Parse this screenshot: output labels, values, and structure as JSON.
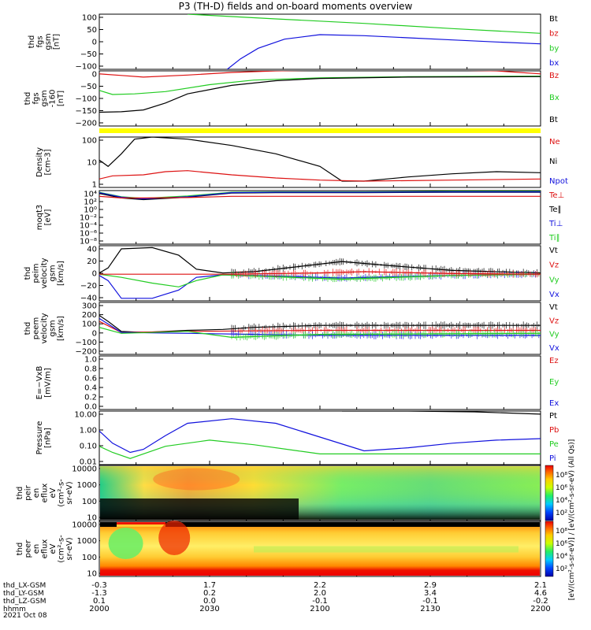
{
  "title": "P3 (TH-D) fields and on-board moments overview",
  "colors": {
    "black": "#000000",
    "red": "#dd1111",
    "green": "#22cc22",
    "blue": "#1111dd",
    "yellow": "#ffff00"
  },
  "chart_data": [
    {
      "type": "line",
      "id": "p1",
      "ylabel": [
        "thd",
        "fgs",
        "gsm",
        "[nT]"
      ],
      "yticks": [
        "100",
        "50",
        "0",
        "−50",
        "−100"
      ],
      "ylim": [
        -100,
        110
      ],
      "legend": [
        {
          "label": "Bt",
          "color": "black"
        },
        {
          "label": "bz",
          "color": "red"
        },
        {
          "label": "by",
          "color": "green"
        },
        {
          "label": "bx",
          "color": "blue"
        }
      ],
      "series": [
        {
          "color": "green",
          "x": [
            0.2,
            0.4,
            0.6,
            0.8,
            1.0
          ],
          "y": [
            110,
            92,
            75,
            55,
            37
          ]
        },
        {
          "color": "blue",
          "x": [
            0.29,
            0.32,
            0.36,
            0.42,
            0.5,
            0.6,
            0.7,
            0.8,
            0.9,
            1.0
          ],
          "y": [
            -100,
            -60,
            -20,
            15,
            32,
            28,
            20,
            12,
            4,
            -3
          ]
        }
      ]
    },
    {
      "type": "line",
      "id": "p2",
      "ylabel": [
        "thd",
        "fgs",
        "gsm",
        "-160",
        "[nT]"
      ],
      "yticks": [
        "0",
        "−50",
        "−100",
        "−150",
        "−200"
      ],
      "ylim": [
        -225,
        15
      ],
      "legend": [
        {
          "label": "Bz",
          "color": "red"
        },
        {
          "label": "Bx",
          "color": "green"
        },
        {
          "label": "Bt",
          "color": "black"
        }
      ],
      "series": [
        {
          "color": "red",
          "x": [
            0.0,
            0.05,
            0.1,
            0.2,
            0.3,
            0.4,
            0.6,
            0.8,
            0.9,
            1.0
          ],
          "y": [
            2,
            -5,
            -12,
            -3,
            8,
            15,
            20,
            18,
            15,
            2
          ]
        },
        {
          "color": "green",
          "x": [
            0.0,
            0.03,
            0.08,
            0.15,
            0.25,
            0.35,
            0.5,
            0.7,
            1.0
          ],
          "y": [
            -70,
            -88,
            -85,
            -75,
            -45,
            -25,
            -15,
            -10,
            -8
          ]
        },
        {
          "color": "black",
          "x": [
            0.0,
            0.05,
            0.1,
            0.15,
            0.2,
            0.3,
            0.4,
            0.5,
            0.7,
            1.0
          ],
          "y": [
            -165,
            -163,
            -155,
            -125,
            -85,
            -48,
            -28,
            -18,
            -12,
            -10
          ]
        }
      ]
    },
    {
      "type": "line",
      "id": "p3",
      "ylabel": [
        "Density",
        "[cm-3]"
      ],
      "yticks": [
        "100",
        "10",
        "1"
      ],
      "ylim": [
        -0.1,
        2.3
      ],
      "log": true,
      "legend": [
        {
          "label": "Ne",
          "color": "red"
        },
        {
          "label": "Ni",
          "color": "black"
        },
        {
          "label": "Npot",
          "color": "blue"
        }
      ],
      "series": [
        {
          "color": "black",
          "x": [
            0.0,
            0.02,
            0.05,
            0.08,
            0.12,
            0.2,
            0.3,
            0.4,
            0.5,
            0.55,
            0.6,
            0.7,
            0.8,
            0.9,
            1.0
          ],
          "y": [
            1.2,
            0.9,
            1.5,
            2.2,
            2.3,
            2.2,
            1.9,
            1.5,
            0.9,
            0.2,
            0.2,
            0.4,
            0.55,
            0.65,
            0.6
          ]
        },
        {
          "color": "red",
          "x": [
            0.0,
            0.03,
            0.1,
            0.15,
            0.2,
            0.3,
            0.4,
            0.5,
            0.6,
            0.8,
            1.0
          ],
          "y": [
            0.3,
            0.45,
            0.5,
            0.65,
            0.7,
            0.5,
            0.35,
            0.25,
            0.2,
            0.25,
            0.3
          ]
        }
      ]
    },
    {
      "type": "line",
      "id": "p4",
      "ylabel": [
        "moqt3",
        "[eV]"
      ],
      "yticks": [
        "10⁴",
        "10²",
        "10⁰",
        "10⁻²",
        "10⁻⁴",
        "10⁻⁶",
        "10⁻⁸"
      ],
      "ylim": [
        -9,
        4
      ],
      "legend": [
        {
          "label": "Te⊥",
          "color": "red"
        },
        {
          "label": "Te∥",
          "color": "black"
        },
        {
          "label": "Ti⊥",
          "color": "blue"
        },
        {
          "label": "Ti∥",
          "color": "green"
        }
      ],
      "series": [
        {
          "color": "black",
          "x": [
            0.0,
            0.05,
            0.1,
            0.2,
            0.3,
            0.4,
            0.6,
            0.8,
            1.0
          ],
          "y": [
            3.3,
            2.2,
            1.8,
            2.4,
            3.4,
            3.5,
            3.5,
            3.6,
            3.6
          ]
        },
        {
          "color": "green",
          "x": [
            0.0,
            0.05,
            0.1,
            0.2,
            0.3,
            0.4,
            0.6,
            0.8,
            1.0
          ],
          "y": [
            3.6,
            2.5,
            2.1,
            2.7,
            3.6,
            3.7,
            3.7,
            3.8,
            3.8
          ]
        },
        {
          "color": "blue",
          "x": [
            0.0,
            0.05,
            0.1,
            0.2,
            0.3,
            0.4,
            0.6,
            0.8,
            1.0
          ],
          "y": [
            3.5,
            2.4,
            2.0,
            2.5,
            3.5,
            3.6,
            3.6,
            3.7,
            3.7
          ]
        },
        {
          "color": "red",
          "x": [
            0.0,
            0.05,
            0.1,
            0.2,
            0.3,
            1.0
          ],
          "y": [
            2.6,
            2.2,
            2.2,
            2.3,
            2.6,
            2.6
          ]
        }
      ]
    },
    {
      "type": "line",
      "id": "p5",
      "ylabel": [
        "thd",
        "peim",
        "velocity",
        "gsm",
        "[km/s]"
      ],
      "yticks": [
        "40",
        "20",
        "0",
        "−20",
        "−40"
      ],
      "ylim": [
        -42,
        45
      ],
      "legend": [
        {
          "label": "Vt",
          "color": "black"
        },
        {
          "label": "Vz",
          "color": "red"
        },
        {
          "label": "Vy",
          "color": "green"
        },
        {
          "label": "Vx",
          "color": "blue"
        }
      ],
      "series": [
        {
          "color": "black",
          "x": [
            0.0,
            0.02,
            0.05,
            0.12,
            0.18,
            0.22,
            0.28,
            0.35,
            0.45,
            0.55,
            0.65,
            0.8,
            1.0
          ],
          "y": [
            2,
            10,
            40,
            42,
            30,
            8,
            2,
            4,
            12,
            20,
            14,
            6,
            2
          ]
        },
        {
          "color": "blue",
          "x": [
            0.0,
            0.02,
            0.05,
            0.12,
            0.18,
            0.22,
            0.28,
            0.4,
            0.55,
            0.8,
            1.0
          ],
          "y": [
            -2,
            -10,
            -38,
            -38,
            -25,
            -5,
            -1,
            -3,
            -6,
            -2,
            0
          ]
        },
        {
          "color": "green",
          "x": [
            0.0,
            0.05,
            0.12,
            0.18,
            0.22,
            0.28,
            0.4,
            0.55,
            0.8,
            1.0
          ],
          "y": [
            0,
            -5,
            -14,
            -20,
            -10,
            -1,
            -4,
            -8,
            -2,
            0
          ]
        },
        {
          "color": "red",
          "x": [
            0.0,
            0.3,
            0.5,
            0.6,
            0.8,
            1.0
          ],
          "y": [
            0,
            0,
            2,
            4,
            1,
            0
          ]
        }
      ]
    },
    {
      "type": "line",
      "id": "p6",
      "ylabel": [
        "thd",
        "peem",
        "velocity",
        "gsm",
        "[km/s]"
      ],
      "yticks": [
        "300",
        "200",
        "100",
        "0",
        "−100",
        "−200"
      ],
      "ylim": [
        -210,
        310
      ],
      "legend": [
        {
          "label": "Vt",
          "color": "black"
        },
        {
          "label": "Vz",
          "color": "red"
        },
        {
          "label": "Vy",
          "color": "green"
        },
        {
          "label": "Vx",
          "color": "blue"
        }
      ],
      "series": [
        {
          "color": "black",
          "x": [
            0.0,
            0.02,
            0.05,
            0.1,
            0.2,
            0.28,
            0.35,
            0.5,
            0.7,
            1.0
          ],
          "y": [
            180,
            120,
            20,
            10,
            30,
            40,
            60,
            80,
            80,
            80
          ]
        },
        {
          "color": "red",
          "x": [
            0.0,
            0.05,
            0.2,
            0.5,
            1.0
          ],
          "y": [
            120,
            10,
            20,
            30,
            30
          ]
        },
        {
          "color": "blue",
          "x": [
            0.0,
            0.05,
            0.2,
            0.5,
            1.0
          ],
          "y": [
            150,
            10,
            0,
            -20,
            -20
          ]
        },
        {
          "color": "green",
          "x": [
            0.0,
            0.05,
            0.2,
            0.3,
            0.5,
            1.0
          ],
          "y": [
            60,
            0,
            20,
            -40,
            -10,
            0
          ]
        }
      ]
    },
    {
      "type": "line",
      "id": "p7",
      "ylabel": [
        "E=−VxB",
        "[mV/m]"
      ],
      "yticks": [
        "1.0",
        "0.8",
        "0.6",
        "0.4",
        "0.2",
        "0.0"
      ],
      "ylim": [
        0,
        1
      ],
      "legend": [
        {
          "label": "Ez",
          "color": "red"
        },
        {
          "label": "Ey",
          "color": "green"
        },
        {
          "label": "Ex",
          "color": "blue"
        }
      ],
      "series": []
    },
    {
      "type": "line",
      "id": "p8",
      "ylabel": [
        "Pressure",
        "[nPa]"
      ],
      "yticks": [
        "10.00",
        "1.00",
        "0.10",
        "0.01"
      ],
      "ylim": [
        -2.2,
        1.3
      ],
      "log": true,
      "legend": [
        {
          "label": "Pt",
          "color": "black"
        },
        {
          "label": "Pb",
          "color": "red"
        },
        {
          "label": "Pe",
          "color": "green"
        },
        {
          "label": "Pi",
          "color": "blue"
        }
      ],
      "series": [
        {
          "color": "blue",
          "x": [
            0.0,
            0.03,
            0.07,
            0.1,
            0.15,
            0.2,
            0.3,
            0.4,
            0.5,
            0.6,
            0.7,
            0.8,
            0.9,
            1.0
          ],
          "y": [
            0.0,
            -0.8,
            -1.4,
            -1.2,
            -0.3,
            0.5,
            0.8,
            0.5,
            -0.4,
            -1.3,
            -1.1,
            -0.8,
            -0.6,
            -0.5
          ]
        },
        {
          "color": "green",
          "x": [
            0.0,
            0.03,
            0.07,
            0.15,
            0.25,
            0.35,
            0.45,
            0.5,
            0.6,
            0.8,
            1.0
          ],
          "y": [
            -1.0,
            -1.4,
            -1.8,
            -1.0,
            -0.6,
            -0.9,
            -1.3,
            -1.5,
            -1.5,
            -1.5,
            -1.5
          ]
        },
        {
          "color": "black",
          "x": [
            0.55,
            0.7,
            0.85,
            1.0
          ],
          "y": [
            1.3,
            1.3,
            1.25,
            1.1
          ]
        }
      ]
    },
    {
      "type": "heatmap",
      "id": "p9",
      "ylabel": [
        "thd",
        "peir",
        "en",
        "eflux",
        "eV",
        "(cm²-s-",
        "sr-eV)"
      ],
      "yticks": [
        "10000",
        "1000",
        "100",
        "10"
      ],
      "colorbar_ticks": [
        "10⁸",
        "10⁶",
        "10⁴",
        "10²"
      ]
    },
    {
      "type": "heatmap",
      "id": "p10",
      "ylabel": [
        "thd",
        "peer",
        "en",
        "eflux",
        "eV",
        "(cm²-s-",
        "sr-eV)"
      ],
      "yticks": [
        "10000",
        "1000",
        "100",
        "10"
      ],
      "colorbar_ticks": [
        "10⁸",
        "10⁶",
        "10⁴",
        "10²"
      ]
    }
  ],
  "colorbar_label": "[eV/(cm²-s-sr-eV)] / [eV/(cm²-s-sr-eV) (All Qs)]",
  "xaxis": {
    "rows": [
      {
        "label": "thd_LX-GSM",
        "values": [
          "-0.3",
          "1.7",
          "2.2",
          "2.9",
          "2.1"
        ]
      },
      {
        "label": "thd_LY-GSM",
        "values": [
          "-1.3",
          "0.2",
          "2.0",
          "3.4",
          "4.6"
        ]
      },
      {
        "label": "thd_LZ-GSM",
        "values": [
          "0.1",
          "0.0",
          "-0.1",
          "-0.1",
          "-0.2"
        ]
      },
      {
        "label": "hhmm",
        "values": [
          "2000",
          "2030",
          "2100",
          "2130",
          "2200"
        ]
      }
    ],
    "date": "2021 Oct 08"
  }
}
